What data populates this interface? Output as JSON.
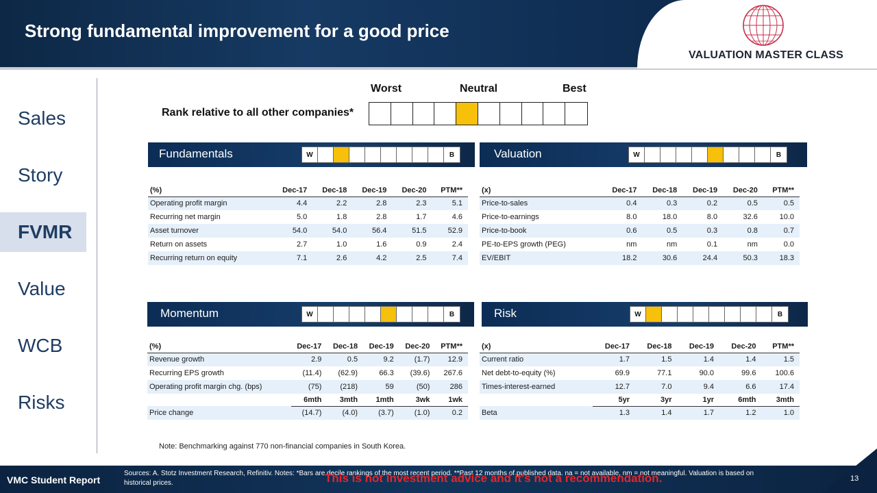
{
  "header": {
    "title": "Strong fundamental improvement for a good price",
    "logo_text": "VALUATION MASTER CLASS",
    "logo_icon": "globe-icon",
    "accent": "#0d2846"
  },
  "nav": {
    "items": [
      {
        "label": "Sales",
        "active": false
      },
      {
        "label": "Story",
        "active": false
      },
      {
        "label": "FVMR",
        "active": true
      },
      {
        "label": "Value",
        "active": false
      },
      {
        "label": "WCB",
        "active": false
      },
      {
        "label": "Risks",
        "active": false
      }
    ]
  },
  "rank": {
    "worst": "Worst",
    "neutral": "Neutral",
    "best": "Best",
    "label": "Rank relative to all other companies*",
    "decile": 5,
    "highlight_color": "#f7c00a"
  },
  "sections": {
    "fundamentals": {
      "title": "Fundamentals",
      "w": "W",
      "b": "B",
      "decile": 3
    },
    "valuation": {
      "title": "Valuation",
      "w": "W",
      "b": "B",
      "decile": 6
    },
    "momentum": {
      "title": "Momentum",
      "w": "W",
      "b": "B",
      "decile": 6
    },
    "risk": {
      "title": "Risk",
      "w": "W",
      "b": "B",
      "decile": 2
    }
  },
  "fundamentals_table": {
    "headers": [
      "(%)",
      "Dec-17",
      "Dec-18",
      "Dec-19",
      "Dec-20",
      "PTM**"
    ],
    "rows": [
      [
        "Operating profit margin",
        "4.4",
        "2.2",
        "2.8",
        "2.3",
        "5.1"
      ],
      [
        "Recurring net margin",
        "5.0",
        "1.8",
        "2.8",
        "1.7",
        "4.6"
      ],
      [
        "Asset turnover",
        "54.0",
        "54.0",
        "56.4",
        "51.5",
        "52.9"
      ],
      [
        "Return on assets",
        "2.7",
        "1.0",
        "1.6",
        "0.9",
        "2.4"
      ],
      [
        "Recurring return on equity",
        "7.1",
        "2.6",
        "4.2",
        "2.5",
        "7.4"
      ]
    ]
  },
  "valuation_table": {
    "headers": [
      "(x)",
      "Dec-17",
      "Dec-18",
      "Dec-19",
      "Dec-20",
      "PTM**"
    ],
    "rows": [
      [
        "Price-to-sales",
        "0.4",
        "0.3",
        "0.2",
        "0.5",
        "0.5"
      ],
      [
        "Price-to-earnings",
        "8.0",
        "18.0",
        "8.0",
        "32.6",
        "10.0"
      ],
      [
        "Price-to-book",
        "0.6",
        "0.5",
        "0.3",
        "0.8",
        "0.7"
      ],
      [
        "PE-to-EPS growth (PEG)",
        "nm",
        "nm",
        "0.1",
        "nm",
        "0.0"
      ],
      [
        "EV/EBIT",
        "18.2",
        "30.6",
        "24.4",
        "50.3",
        "18.3"
      ]
    ]
  },
  "momentum_table": {
    "headers": [
      "(%)",
      "Dec-17",
      "Dec-18",
      "Dec-19",
      "Dec-20",
      "PTM**"
    ],
    "rows": [
      [
        "Revenue growth",
        "2.9",
        "0.5",
        "9.2",
        "(1.7)",
        "12.9"
      ],
      [
        "Recurring EPS growth",
        "(11.4)",
        "(62.9)",
        "66.3",
        "(39.6)",
        "267.6"
      ],
      [
        "Operating profit margin chg. (bps)",
        "(75)",
        "(218)",
        "59",
        "(50)",
        "286"
      ]
    ],
    "sub_headers": [
      "",
      "6mth",
      "3mth",
      "1mth",
      "3wk",
      "1wk"
    ],
    "sub_row": [
      "Price change",
      "(14.7)",
      "(4.0)",
      "(3.7)",
      "(1.0)",
      "0.2"
    ]
  },
  "risk_table": {
    "headers": [
      "(x)",
      "Dec-17",
      "Dec-18",
      "Dec-19",
      "Dec-20",
      "PTM**"
    ],
    "rows": [
      [
        "Current ratio",
        "1.7",
        "1.5",
        "1.4",
        "1.4",
        "1.5"
      ],
      [
        "Net debt-to-equity (%)",
        "69.9",
        "77.1",
        "90.0",
        "99.6",
        "100.6"
      ],
      [
        "Times-interest-earned",
        "12.7",
        "7.0",
        "9.4",
        "6.6",
        "17.4"
      ]
    ],
    "sub_headers": [
      "",
      "5yr",
      "3yr",
      "1yr",
      "6mth",
      "3mth"
    ],
    "sub_row": [
      "Beta",
      "1.3",
      "1.4",
      "1.7",
      "1.2",
      "1.0"
    ]
  },
  "note": "Note:  Benchmarking against 770 non-financial companies in South Korea.",
  "footer": {
    "left": "VMC Student Report",
    "sources": "Sources: A. Stotz Investment Research, Refinitiv. Notes: *Bars are decile rankings of the most recent period. **Past 12 months of published data. na = not available, nm = not meaningful. Valuation is based on historical prices.",
    "warning": "This is not investment advice and it's not a recommendation.",
    "page": "13"
  }
}
